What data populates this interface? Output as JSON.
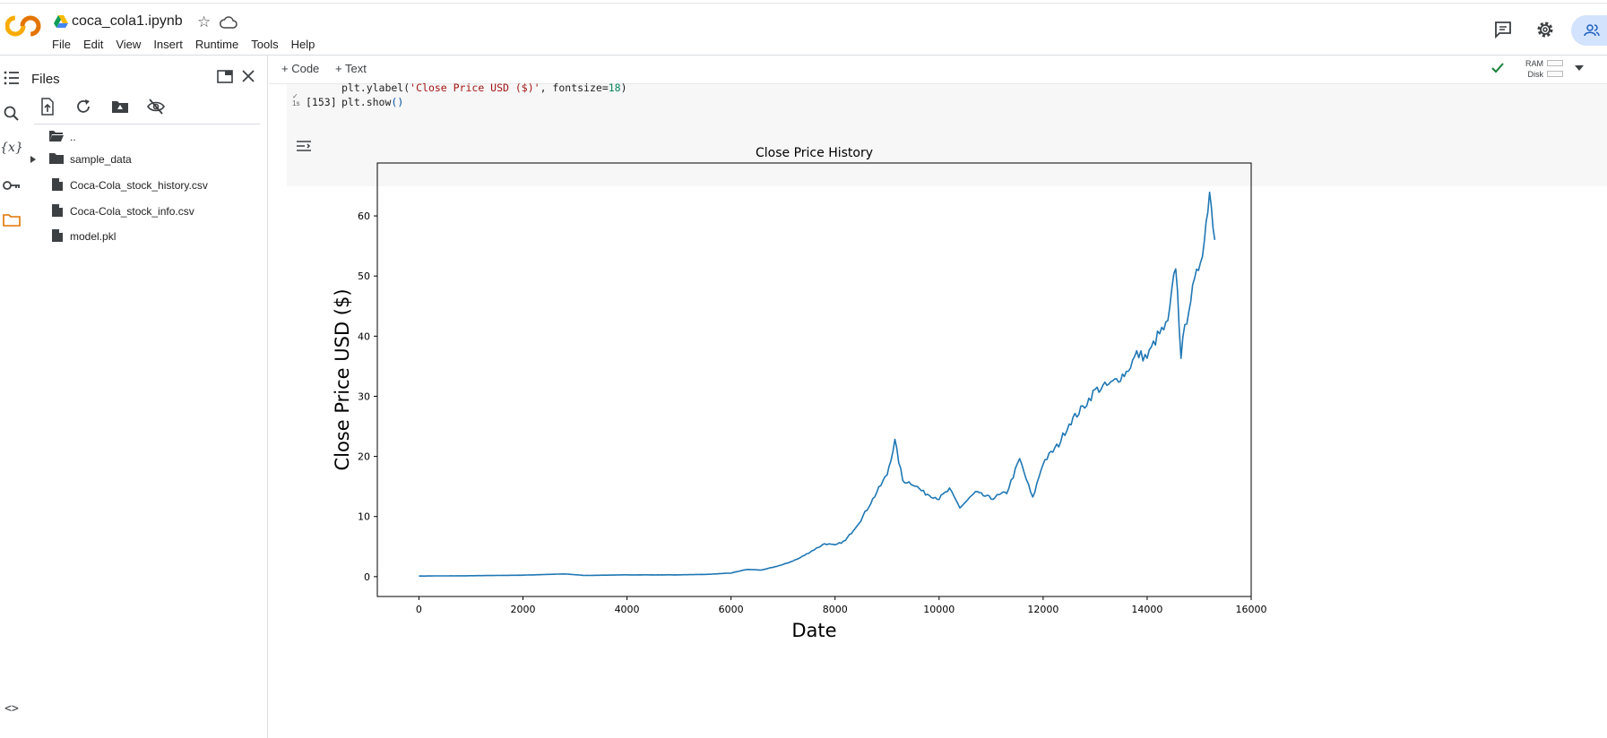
{
  "header": {
    "notebook_title": "coca_cola1.ipynb",
    "menu": [
      "File",
      "Edit",
      "View",
      "Insert",
      "Runtime",
      "Tools",
      "Help"
    ],
    "icons": [
      "colab-logo-icon",
      "drive-icon",
      "star-icon",
      "cloud-icon",
      "comment-icon",
      "gear-icon",
      "share-people-icon"
    ]
  },
  "rail": {
    "icons": [
      "toc-icon",
      "search-icon",
      "variables-icon",
      "key-icon",
      "folder-icon",
      "code-snippets-icon"
    ]
  },
  "files_panel": {
    "title": "Files",
    "toolbar_icons": [
      "upload-icon",
      "refresh-icon",
      "mount-drive-icon",
      "hide-icon"
    ],
    "items": [
      {
        "name": "..",
        "type": "folder"
      },
      {
        "name": "sample_data",
        "type": "folder"
      },
      {
        "name": "Coca-Cola_stock_history.csv",
        "type": "file"
      },
      {
        "name": "Coca-Cola_stock_info.csv",
        "type": "file"
      },
      {
        "name": "model.pkl",
        "type": "file"
      }
    ]
  },
  "toolbar": {
    "code_label": "+ Code",
    "text_label": "+ Text",
    "ram_label": "RAM",
    "disk_label": "Disk"
  },
  "cell": {
    "exec_check": "✓",
    "exec_time": "1s",
    "exec_count": "[153]",
    "line1": {
      "a": "plt.ylabel(",
      "b": "'Close Price USD ($)'",
      "c": ", fontsize=",
      "d": "18",
      "e": ")"
    },
    "line2": {
      "a": "plt.show",
      "b": "()"
    }
  },
  "colors": {
    "line": "#1f77b4",
    "accent_blue": "#d3e3fd",
    "colab_orange": "#f9ab00"
  },
  "chart_data": {
    "type": "line",
    "title": "Close Price History",
    "xlabel": "Date",
    "ylabel": "Close Price USD ($)",
    "xlim": [
      -800,
      16000
    ],
    "ylim": [
      -3.3,
      68.8
    ],
    "xticks": [
      0,
      2000,
      4000,
      6000,
      8000,
      10000,
      12000,
      14000,
      16000
    ],
    "yticks": [
      0,
      10,
      20,
      30,
      40,
      50,
      60
    ],
    "grid": false,
    "series": [
      {
        "points": [
          [
            0,
            0.1
          ],
          [
            1000,
            0.15
          ],
          [
            2000,
            0.25
          ],
          [
            2800,
            0.45
          ],
          [
            3200,
            0.2
          ],
          [
            4000,
            0.3
          ],
          [
            5000,
            0.3
          ],
          [
            5600,
            0.4
          ],
          [
            6000,
            0.6
          ],
          [
            6300,
            1.2
          ],
          [
            6600,
            1.1
          ],
          [
            7000,
            2.0
          ],
          [
            7300,
            3.0
          ],
          [
            7600,
            4.5
          ],
          [
            7800,
            5.5
          ],
          [
            8000,
            5.2
          ],
          [
            8200,
            6.0
          ],
          [
            8500,
            9.5
          ],
          [
            8800,
            14.0
          ],
          [
            9000,
            17.0
          ],
          [
            9150,
            22.5
          ],
          [
            9300,
            16.0
          ],
          [
            9500,
            15.5
          ],
          [
            9700,
            14.0
          ],
          [
            10000,
            13.0
          ],
          [
            10200,
            14.5
          ],
          [
            10400,
            11.5
          ],
          [
            10700,
            14.0
          ],
          [
            11000,
            13.0
          ],
          [
            11300,
            14.0
          ],
          [
            11550,
            19.5
          ],
          [
            11800,
            13.0
          ],
          [
            12000,
            19.0
          ],
          [
            12300,
            22.0
          ],
          [
            12500,
            25.5
          ],
          [
            12800,
            28.5
          ],
          [
            13000,
            31.0
          ],
          [
            13300,
            32.0
          ],
          [
            13600,
            34.0
          ],
          [
            13800,
            37.0
          ],
          [
            14000,
            36.5
          ],
          [
            14200,
            40.0
          ],
          [
            14400,
            42.0
          ],
          [
            14550,
            52.0
          ],
          [
            14650,
            37.0
          ],
          [
            14800,
            45.0
          ],
          [
            14950,
            50.0
          ],
          [
            15100,
            56.0
          ],
          [
            15200,
            64.5
          ],
          [
            15300,
            56.0
          ]
        ]
      }
    ]
  }
}
